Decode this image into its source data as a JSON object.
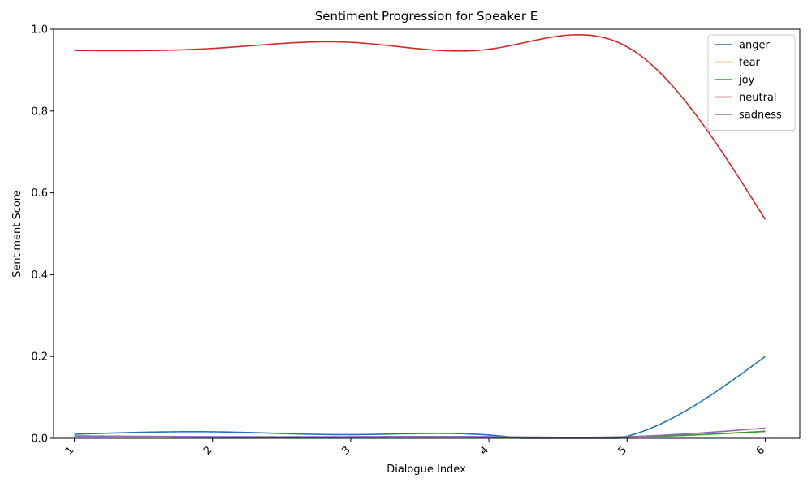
{
  "chart_data": {
    "type": "line",
    "title": "Sentiment Progression for Speaker E",
    "xlabel": "Dialogue Index",
    "ylabel": "Sentiment Score",
    "x": [
      1,
      2,
      3,
      4,
      5,
      6
    ],
    "x_tick_labels": [
      "1",
      "2",
      "3",
      "4",
      "5",
      "6"
    ],
    "y_tick_labels": [
      "0.0",
      "0.2",
      "0.4",
      "0.6",
      "0.8",
      "1.0"
    ],
    "y_ticks": [
      0.0,
      0.2,
      0.4,
      0.6,
      0.8,
      1.0
    ],
    "xlim": [
      0.85,
      6.25
    ],
    "ylim": [
      0,
      1.0
    ],
    "grid": false,
    "legend_position": "top-right",
    "smoothed": true,
    "series": [
      {
        "name": "anger",
        "color": "#1f77b4",
        "values": [
          0.01,
          0.016,
          0.009,
          0.008,
          0.005,
          0.2
        ]
      },
      {
        "name": "fear",
        "color": "#ff7f0e",
        "values": [
          0.005,
          0.003,
          0.003,
          0.003,
          0.003,
          0.017
        ]
      },
      {
        "name": "joy",
        "color": "#2ca02c",
        "values": [
          0.005,
          0.003,
          0.003,
          0.003,
          0.003,
          0.017
        ]
      },
      {
        "name": "neutral",
        "color": "#d62728",
        "values": [
          0.948,
          0.953,
          0.968,
          0.951,
          0.957,
          0.535
        ]
      },
      {
        "name": "sadness",
        "color": "#9467bd",
        "values": [
          0.006,
          0.004,
          0.004,
          0.004,
          0.004,
          0.025
        ]
      }
    ]
  }
}
